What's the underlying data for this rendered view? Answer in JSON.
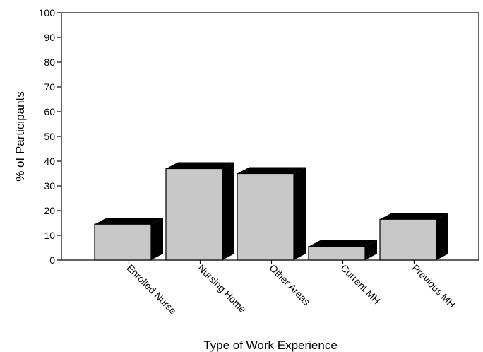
{
  "chart_data": {
    "type": "bar",
    "categories": [
      "Enrolled Nurse",
      "Nursing Home",
      "Other Areas",
      "Current MH",
      "Previous MH"
    ],
    "values": [
      14.5,
      37,
      35,
      5.5,
      16.5
    ],
    "xlabel": "Type of Work Experience",
    "ylabel": "% of Participants",
    "ylim": [
      0,
      100
    ],
    "yticks": [
      0,
      10,
      20,
      30,
      40,
      50,
      60,
      70,
      80,
      90,
      100
    ],
    "grid": false,
    "legend": "none",
    "style": "3d-bar",
    "colors": {
      "bar_face": "#c8c8c8",
      "bar_depth": "#000000",
      "axis": "#000000"
    }
  }
}
